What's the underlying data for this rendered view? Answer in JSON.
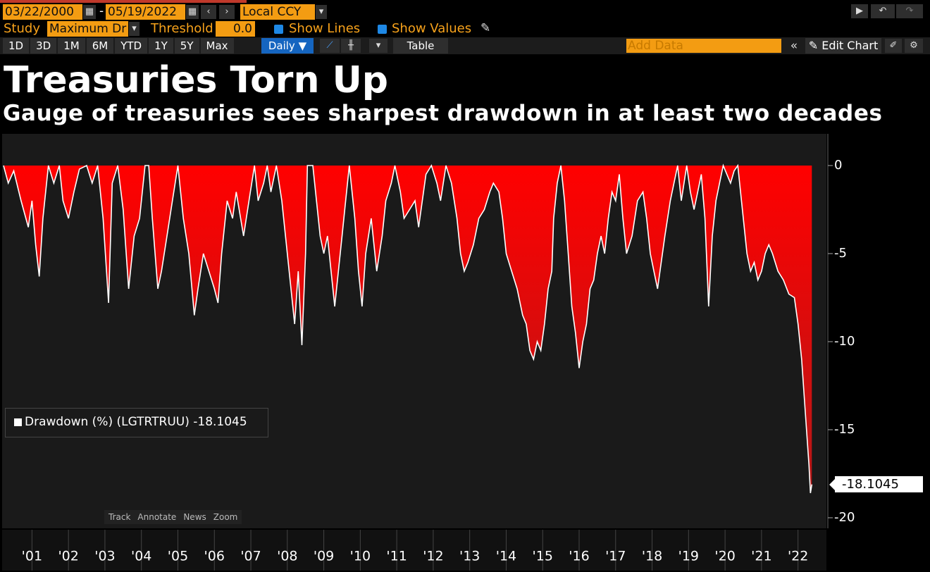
{
  "toolbar": {
    "start_date": "03/22/2000",
    "end_date": "05/19/2022",
    "currency": "Local CCY",
    "study_label": "Study",
    "study": "Maximum Dr",
    "threshold_label": "Threshold",
    "threshold": "0.0",
    "show_lines": "Show Lines",
    "show_values": "Show Values",
    "periods": [
      "1D",
      "3D",
      "1M",
      "6M",
      "YTD",
      "1Y",
      "5Y",
      "Max"
    ],
    "frequency": "Daily",
    "table": "Table",
    "add_data": "Add Data",
    "edit_chart": "Edit Chart"
  },
  "chart_tools": [
    "Track",
    "Annotate",
    "News",
    "Zoom"
  ],
  "chart_data": {
    "type": "area",
    "title": "Treasuries Torn Up",
    "subtitle": "Gauge of treasuries sees sharpest drawdown in at least two decades",
    "series": [
      {
        "name": "Drawdown (%) (LGTRTRUU)",
        "color": "#ff0000",
        "line_color": "#ffffff",
        "x": [
          2000.22,
          2000.35,
          2000.5,
          2000.7,
          2000.9,
          2001.0,
          2001.1,
          2001.2,
          2001.3,
          2001.45,
          2001.6,
          2001.75,
          2001.85,
          2002.0,
          2002.15,
          2002.3,
          2002.5,
          2002.65,
          2002.8,
          2002.95,
          2003.1,
          2003.2,
          2003.35,
          2003.5,
          2003.65,
          2003.8,
          2003.95,
          2004.1,
          2004.2,
          2004.3,
          2004.45,
          2004.55,
          2004.7,
          2004.85,
          2005.0,
          2005.15,
          2005.3,
          2005.45,
          2005.55,
          2005.7,
          2005.85,
          2006.0,
          2006.1,
          2006.2,
          2006.35,
          2006.5,
          2006.6,
          2006.8,
          2006.95,
          2007.1,
          2007.2,
          2007.35,
          2007.45,
          2007.55,
          2007.7,
          2007.85,
          2007.95,
          2008.1,
          2008.2,
          2008.3,
          2008.4,
          2008.5,
          2008.55,
          2008.7,
          2008.8,
          2008.9,
          2009.0,
          2009.1,
          2009.2,
          2009.3,
          2009.35,
          2009.5,
          2009.6,
          2009.7,
          2009.85,
          2009.95,
          2010.05,
          2010.15,
          2010.3,
          2010.45,
          2010.6,
          2010.7,
          2010.85,
          2010.95,
          2011.1,
          2011.2,
          2011.35,
          2011.5,
          2011.6,
          2011.7,
          2011.8,
          2011.95,
          2012.1,
          2012.2,
          2012.35,
          2012.5,
          2012.65,
          2012.75,
          2012.85,
          2012.95,
          2013.1,
          2013.25,
          2013.4,
          2013.55,
          2013.65,
          2013.8,
          2013.9,
          2014.0,
          2014.15,
          2014.3,
          2014.45,
          2014.55,
          2014.65,
          2014.75,
          2014.85,
          2014.95,
          2015.05,
          2015.15,
          2015.25,
          2015.3,
          2015.4,
          2015.5,
          2015.6,
          2015.7,
          2015.8,
          2015.9,
          2016.0,
          2016.1,
          2016.2,
          2016.3,
          2016.4,
          2016.5,
          2016.6,
          2016.7,
          2016.8,
          2016.9,
          2017.0,
          2017.1,
          2017.2,
          2017.3,
          2017.45,
          2017.6,
          2017.75,
          2017.85,
          2017.95,
          2018.05,
          2018.15,
          2018.25,
          2018.35,
          2018.5,
          2018.6,
          2018.7,
          2018.8,
          2018.95,
          2019.05,
          2019.15,
          2019.25,
          2019.35,
          2019.45,
          2019.55,
          2019.65,
          2019.75,
          2019.85,
          2019.95,
          2020.05,
          2020.15,
          2020.25,
          2020.35,
          2020.45,
          2020.6,
          2020.7,
          2020.8,
          2020.9,
          2021.0,
          2021.1,
          2021.2,
          2021.3,
          2021.45,
          2021.6,
          2021.75,
          2021.9,
          2022.0,
          2022.1,
          2022.2,
          2022.3,
          2022.34,
          2022.38
        ],
        "values": [
          0,
          -1,
          -0.3,
          -2,
          -3.5,
          -2,
          -4.5,
          -6.3,
          -3,
          0,
          -1,
          0,
          -2,
          -3,
          -1.5,
          -0.2,
          0,
          -1,
          0,
          -3,
          -7.8,
          -1,
          0,
          -2.5,
          -7,
          -4,
          -3,
          0,
          0,
          -3,
          -7,
          -6,
          -4,
          -2,
          0,
          -3,
          -5,
          -8.5,
          -7,
          -5,
          -6,
          -7,
          -7.8,
          -5,
          -2,
          -3,
          -1.5,
          -4,
          -2,
          0,
          -2,
          -1,
          0,
          -1.5,
          0,
          -2,
          -4,
          -7,
          -9,
          -6,
          -10.2,
          -5,
          0,
          0,
          -2,
          -4,
          -5,
          -4,
          -6,
          -8,
          -7,
          -4,
          -2,
          0,
          -3,
          -6,
          -8,
          -5,
          -3,
          -6,
          -4,
          -2,
          -1,
          0,
          -1.5,
          -3,
          -2.5,
          -2,
          -3.5,
          -2,
          -0.5,
          0,
          -1,
          -2,
          0,
          -1,
          -3,
          -5,
          -6,
          -5.5,
          -4.5,
          -3,
          -2.5,
          -1.5,
          -1,
          -1.5,
          -3,
          -5,
          -6,
          -7,
          -8.5,
          -9,
          -10.5,
          -11,
          -10,
          -10.5,
          -9,
          -7,
          -6,
          -3,
          -1,
          0,
          -2,
          -5,
          -8,
          -9.5,
          -11.5,
          -10,
          -9,
          -7,
          -6.5,
          -5,
          -4,
          -5,
          -3,
          -1.5,
          -2,
          -0.5,
          -3,
          -5,
          -4,
          -2,
          -1.5,
          -3,
          -5,
          -6,
          -7,
          -5.5,
          -4,
          -2,
          -1,
          0,
          -2,
          0,
          -1.5,
          -2.5,
          -1.5,
          -0.5,
          -3,
          -8,
          -4,
          -2,
          -1,
          0,
          -0.5,
          -1,
          -0.3,
          0,
          -2,
          -5,
          -6,
          -5.5,
          -6.5,
          -6,
          -5,
          -4.5,
          -5,
          -6,
          -6.5,
          -7.3,
          -7.5,
          -9,
          -11,
          -14,
          -17,
          -18.6,
          -18.1045
        ]
      }
    ],
    "legend_value": "-18.1045",
    "last_value_label": "-18.1045",
    "xlim": [
      2000.22,
      2022.76
    ],
    "xticks": [
      {
        "value": 2001,
        "label": "'01"
      },
      {
        "value": 2002,
        "label": "'02"
      },
      {
        "value": 2003,
        "label": "'03"
      },
      {
        "value": 2004,
        "label": "'04"
      },
      {
        "value": 2005,
        "label": "'05"
      },
      {
        "value": 2006,
        "label": "'06"
      },
      {
        "value": 2007,
        "label": "'07"
      },
      {
        "value": 2008,
        "label": "'08"
      },
      {
        "value": 2009,
        "label": "'09"
      },
      {
        "value": 2010,
        "label": "'10"
      },
      {
        "value": 2011,
        "label": "'11"
      },
      {
        "value": 2012,
        "label": "'12"
      },
      {
        "value": 2013,
        "label": "'13"
      },
      {
        "value": 2014,
        "label": "'14"
      },
      {
        "value": 2015,
        "label": "'15"
      },
      {
        "value": 2016,
        "label": "'16"
      },
      {
        "value": 2017,
        "label": "'17"
      },
      {
        "value": 2018,
        "label": "'18"
      },
      {
        "value": 2019,
        "label": "'19"
      },
      {
        "value": 2020,
        "label": "'20"
      },
      {
        "value": 2021,
        "label": "'21"
      },
      {
        "value": 2022,
        "label": "'22"
      }
    ],
    "ylim": [
      -20.6,
      1.8
    ],
    "yticks": [
      0,
      -5,
      -10,
      -15,
      -20
    ],
    "grid": false
  }
}
